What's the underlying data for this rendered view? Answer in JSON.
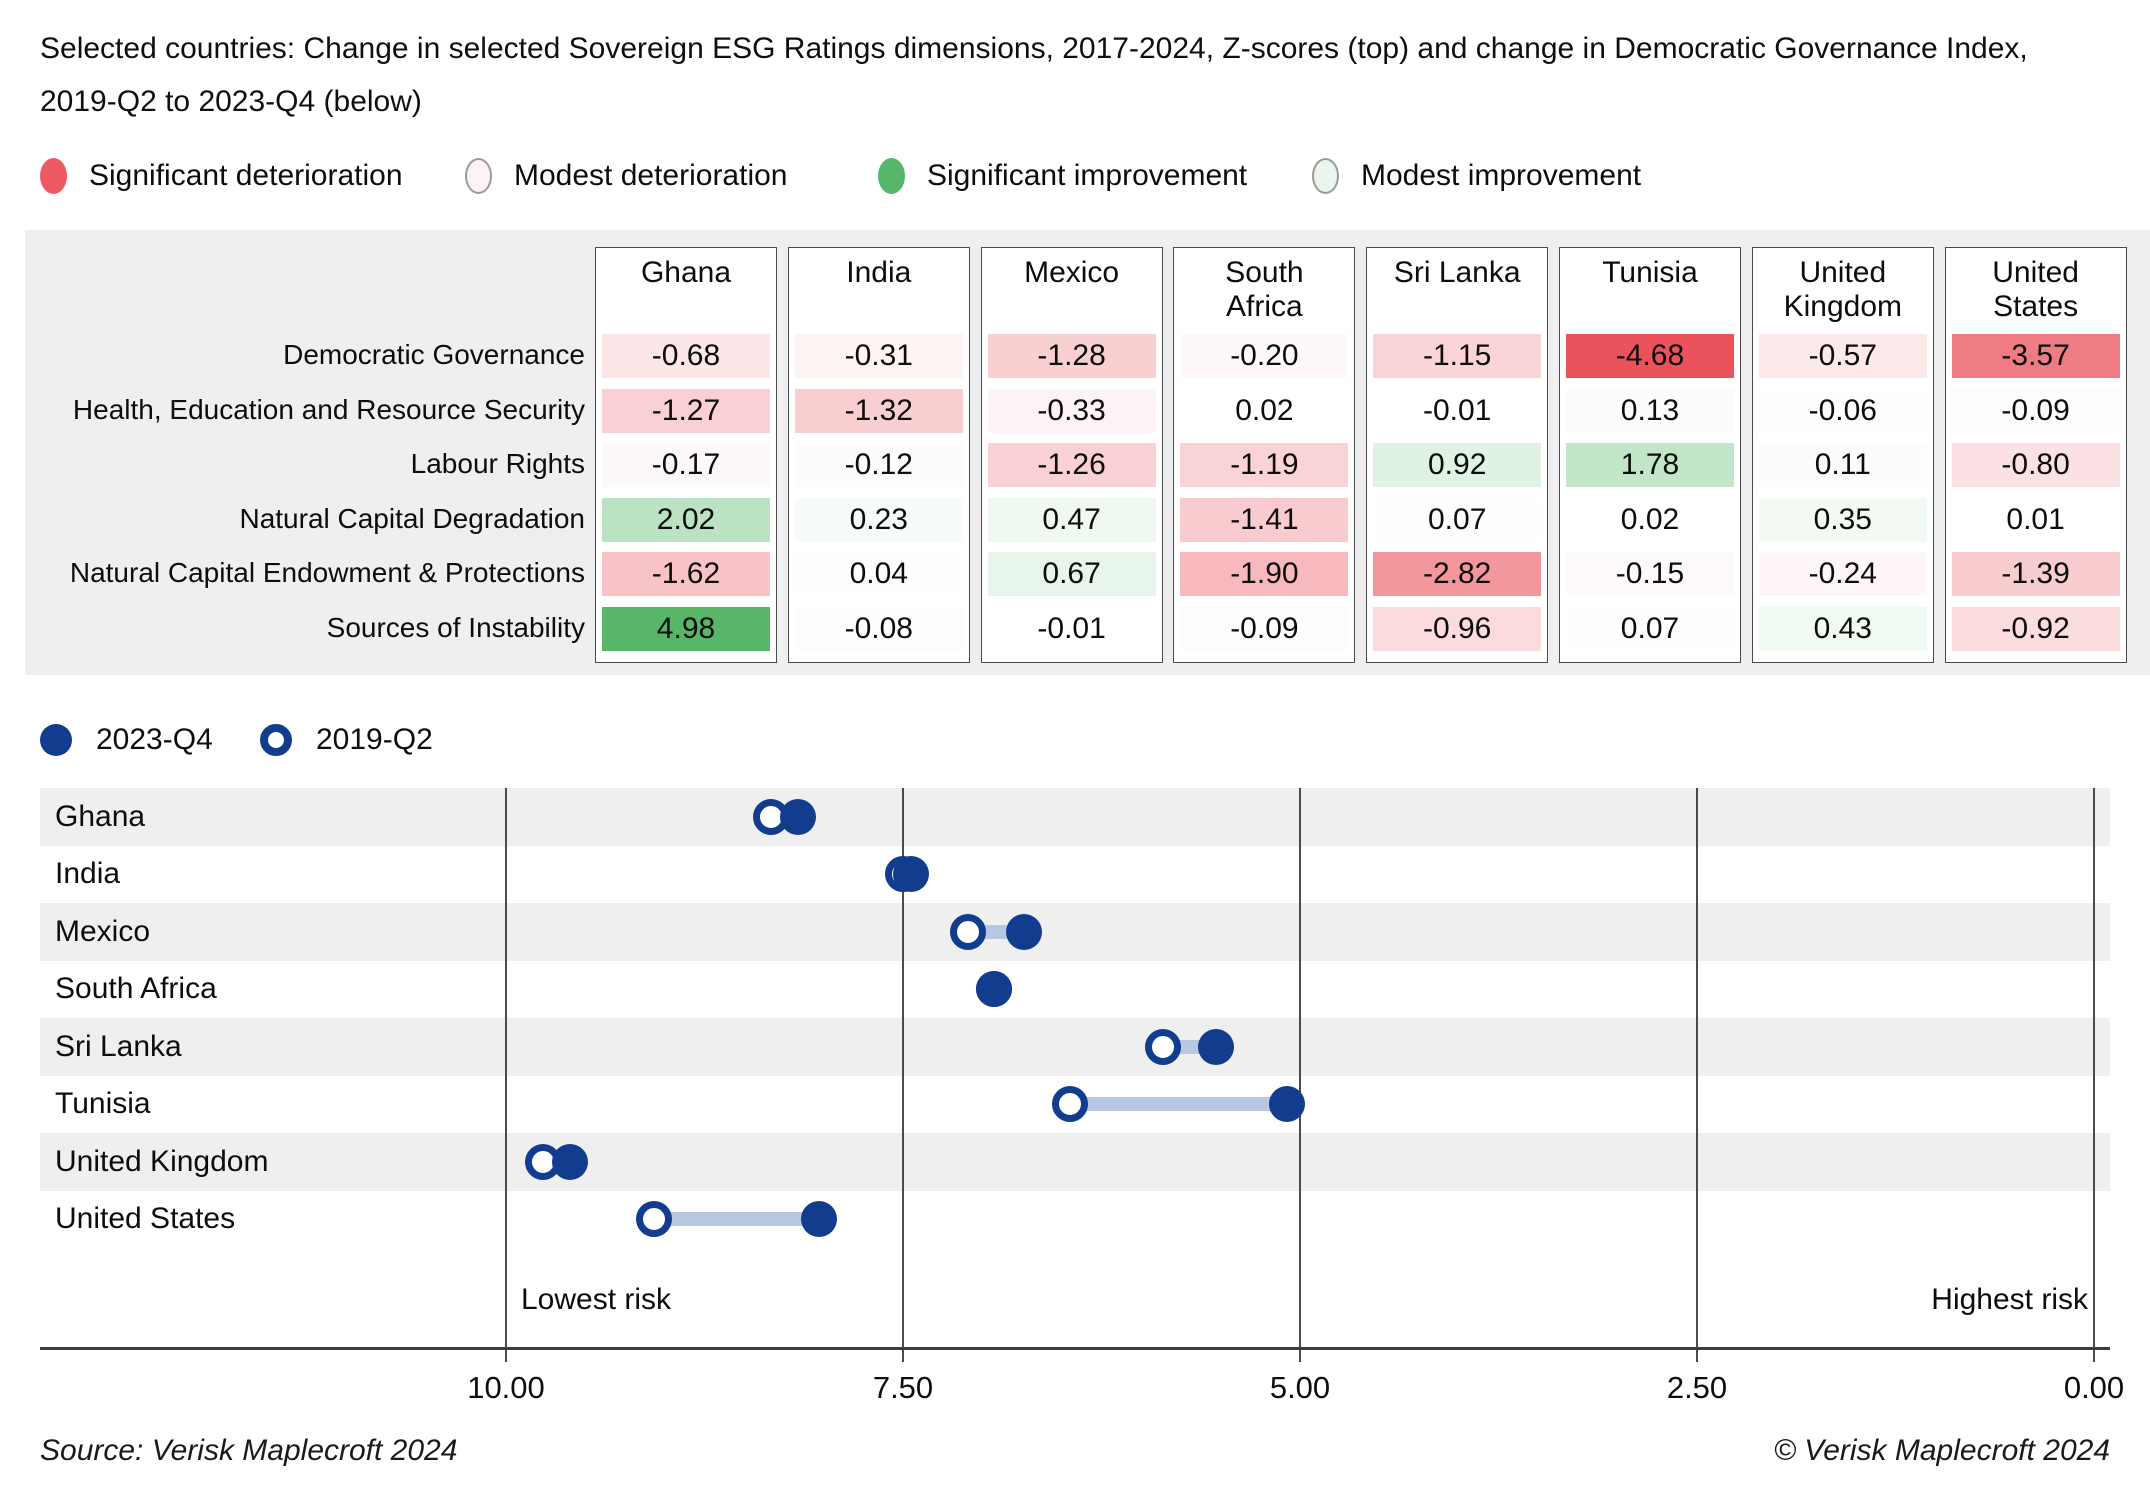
{
  "title": "Selected countries: Change in selected Sovereign ESG Ratings dimensions, 2017-2024, Z-scores (top) and change in Democratic Governance Index,\n2019-Q2 to 2023-Q4 (below)",
  "heatmap_legend": [
    {
      "label": "Significant deterioration",
      "color": "#ee5a63",
      "border": ""
    },
    {
      "label": "Modest deterioration",
      "color": "#fdf3f4",
      "border": "#9a9a9a"
    },
    {
      "label": "Significant improvement",
      "color": "#56b66c",
      "border": ""
    },
    {
      "label": "Modest improvement",
      "color": "#eaf5ed",
      "border": "#9a9a9a"
    }
  ],
  "risk_labels": {
    "left": "Lowest risk",
    "right": "Highest risk"
  },
  "footer": {
    "source": "Source: Verisk Maplecroft 2024",
    "copyright": "© Verisk Maplecroft 2024"
  },
  "colors": {
    "navy": "#123c8d",
    "connector": "#b9c8e2",
    "deterioration_end": "#e94651",
    "improvement_end": "#56b667",
    "band_gray": "#efefef",
    "band_white": "#ffffff"
  },
  "chart_data": [
    {
      "type": "heatmap",
      "title": "Change in selected Sovereign ESG Ratings dimensions, 2017-2024, Z-scores",
      "rows": [
        "Democratic Governance",
        "Health, Education and Resource Security",
        "Labour Rights",
        "Natural Capital Degradation",
        "Natural Capital Endowment & Protections",
        "Sources of Instability"
      ],
      "columns": [
        "Ghana",
        "India",
        "Mexico",
        "South Africa",
        "Sri Lanka",
        "Tunisia",
        "United Kingdom",
        "United States"
      ],
      "series": [
        {
          "name": "Ghana",
          "values": [
            -0.68,
            -1.27,
            -0.17,
            2.02,
            -1.62,
            4.98
          ]
        },
        {
          "name": "India",
          "values": [
            -0.31,
            -1.32,
            -0.12,
            0.23,
            0.04,
            -0.08
          ]
        },
        {
          "name": "Mexico",
          "values": [
            -1.28,
            -0.33,
            -1.26,
            0.47,
            0.67,
            -0.01
          ]
        },
        {
          "name": "South Africa",
          "values": [
            -0.2,
            0.02,
            -1.19,
            -1.41,
            -1.9,
            -0.09
          ]
        },
        {
          "name": "Sri Lanka",
          "values": [
            -1.15,
            -0.01,
            0.92,
            0.07,
            -2.82,
            -0.96
          ]
        },
        {
          "name": "Tunisia",
          "values": [
            -4.68,
            0.13,
            1.78,
            0.02,
            -0.15,
            0.07
          ]
        },
        {
          "name": "United Kingdom",
          "values": [
            -0.57,
            -0.06,
            0.11,
            0.35,
            -0.24,
            0.43
          ]
        },
        {
          "name": "United States",
          "values": [
            -3.57,
            -0.09,
            -0.8,
            0.01,
            -1.39,
            -0.92
          ]
        }
      ],
      "color_scale": {
        "negative_end_at_minus5": "#e94651",
        "positive_end_at_plus5": "#56b667",
        "zero": "#ffffff"
      }
    },
    {
      "type": "dumbbell",
      "title": "Change in Democratic Governance Index, 2019-Q2 to 2023-Q4",
      "categories": [
        "Ghana",
        "India",
        "Mexico",
        "South Africa",
        "Sri Lanka",
        "Tunisia",
        "United Kingdom",
        "United States"
      ],
      "series": [
        {
          "name": "2023-Q4",
          "marker": "filled",
          "values": [
            8.16,
            7.45,
            6.74,
            6.93,
            5.53,
            5.08,
            9.6,
            8.03
          ]
        },
        {
          "name": "2019-Q2",
          "marker": "open",
          "values": [
            8.33,
            7.5,
            7.09,
            6.93,
            5.86,
            6.45,
            9.77,
            9.07
          ]
        }
      ],
      "xlim": [
        10,
        0
      ],
      "x_ticks": [
        "10.00",
        "7.50",
        "5.00",
        "2.50",
        "0.00"
      ],
      "axis_annotations": {
        "left": "Lowest risk",
        "right": "Highest risk"
      },
      "legend_position": "top-left",
      "grid": "vertical"
    }
  ]
}
